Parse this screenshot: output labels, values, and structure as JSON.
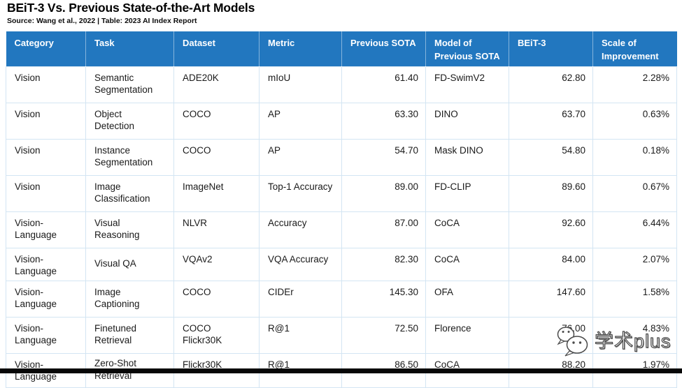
{
  "title": "BEiT-3 Vs. Previous State-of-the-Art Models",
  "source": "Source: Wang et al., 2022 | Table: 2023 AI Index Report",
  "colors": {
    "header_bg": "#2277BF",
    "header_text": "#FFFFFF",
    "row_border": "#D3E5F3",
    "body_text": "#1A1A1A",
    "bottom_bar": "#070707"
  },
  "chart_data": {
    "type": "table",
    "title": "BEiT-3 Vs. Previous State-of-the-Art Models",
    "source": "Source: Wang et al., 2022 | Table: 2023 AI Index Report",
    "columns": [
      "Category",
      "Task",
      "Dataset",
      "Metric",
      "Previous SOTA",
      "Model of\nPrevious SOTA",
      "BEiT-3",
      "Scale of\nImprovement"
    ],
    "rows": [
      [
        "Vision",
        "Semantic\nSegmentation",
        "ADE20K",
        "mIoU",
        "61.40",
        "FD-SwimV2",
        "62.80",
        "2.28%"
      ],
      [
        "Vision",
        "Object\nDetection",
        "COCO",
        "AP",
        "63.30",
        "DINO",
        "63.70",
        "0.63%"
      ],
      [
        "Vision",
        "Instance\nSegmentation",
        "COCO",
        "AP",
        "54.70",
        "Mask DINO",
        "54.80",
        "0.18%"
      ],
      [
        "Vision",
        "Image\nClassification",
        "ImageNet",
        "Top-1 Accuracy",
        "89.00",
        "FD-CLIP",
        "89.60",
        "0.67%"
      ],
      [
        "Vision-Language",
        "Visual\nReasoning",
        "NLVR",
        "Accuracy",
        "87.00",
        "CoCA",
        "92.60",
        "6.44%"
      ],
      [
        "Vision-Language",
        "Visual QA",
        "VQAv2",
        "VQA Accuracy",
        "82.30",
        "CoCA",
        "84.00",
        "2.07%"
      ],
      [
        "Vision-Language",
        "Image\nCaptioning",
        "COCO",
        "CIDEr",
        "145.30",
        "OFA",
        "147.60",
        "1.58%"
      ],
      [
        "Vision-Language",
        "Finetuned\nRetrieval",
        "COCO\nFlickr30K",
        "R@1",
        "72.50",
        "Florence",
        "76.00",
        "4.83%"
      ],
      [
        "Vision-Language",
        "Zero-Shot\nRetrieval",
        "Flickr30K",
        "R@1",
        "86.50",
        "CoCA",
        "88.20",
        "1.97%"
      ]
    ]
  },
  "watermark": {
    "icon": "wechat-icon",
    "text": "学术plus"
  }
}
